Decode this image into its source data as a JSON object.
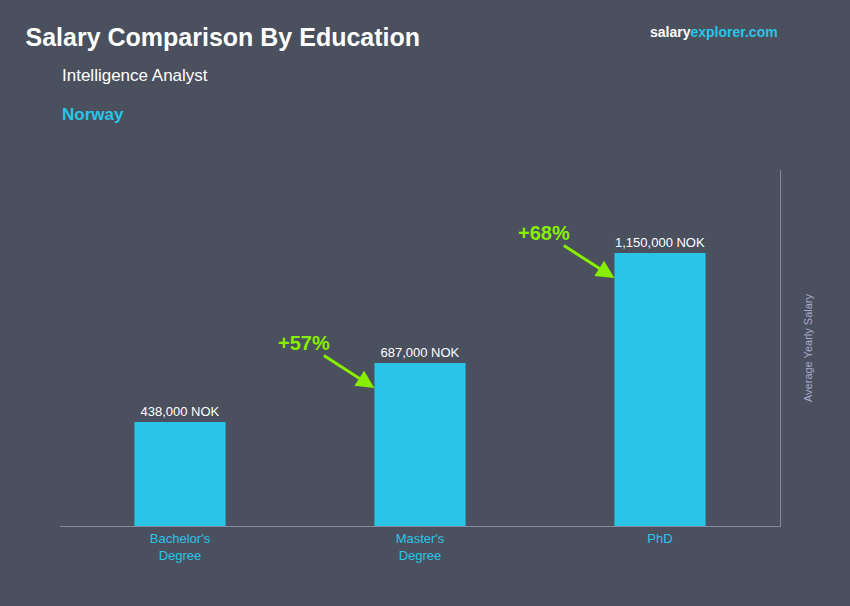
{
  "chart_data": {
    "type": "bar",
    "title": "Salary Comparison By Education",
    "subtitle": "Intelligence Analyst",
    "categories": [
      "Bachelor's\nDegree",
      "Master's\nDegree",
      "PhD"
    ],
    "values": [
      438000,
      687000,
      1150000
    ],
    "value_labels": [
      "438,000 NOK",
      "687,000 NOK",
      "1,150,000 NOK"
    ],
    "data_labels": true,
    "color": "#29C4E8",
    "ylabel": "Average Yearly Salary",
    "ylim": [
      0,
      1500000
    ],
    "yticks": [],
    "tick_labels": "x",
    "grid": false,
    "annotations": [
      {
        "text": "Norway",
        "color": "#29C4E8"
      },
      {
        "text": "salary",
        "color": "#ffffff"
      },
      {
        "text": "explorer.com",
        "color": "#29C4E8"
      },
      {
        "text": "+57%",
        "color": "#88EE00",
        "category": "Master's\nDegree"
      },
      {
        "text": "+68%",
        "color": "#88EE00",
        "category": "PhD"
      }
    ]
  }
}
